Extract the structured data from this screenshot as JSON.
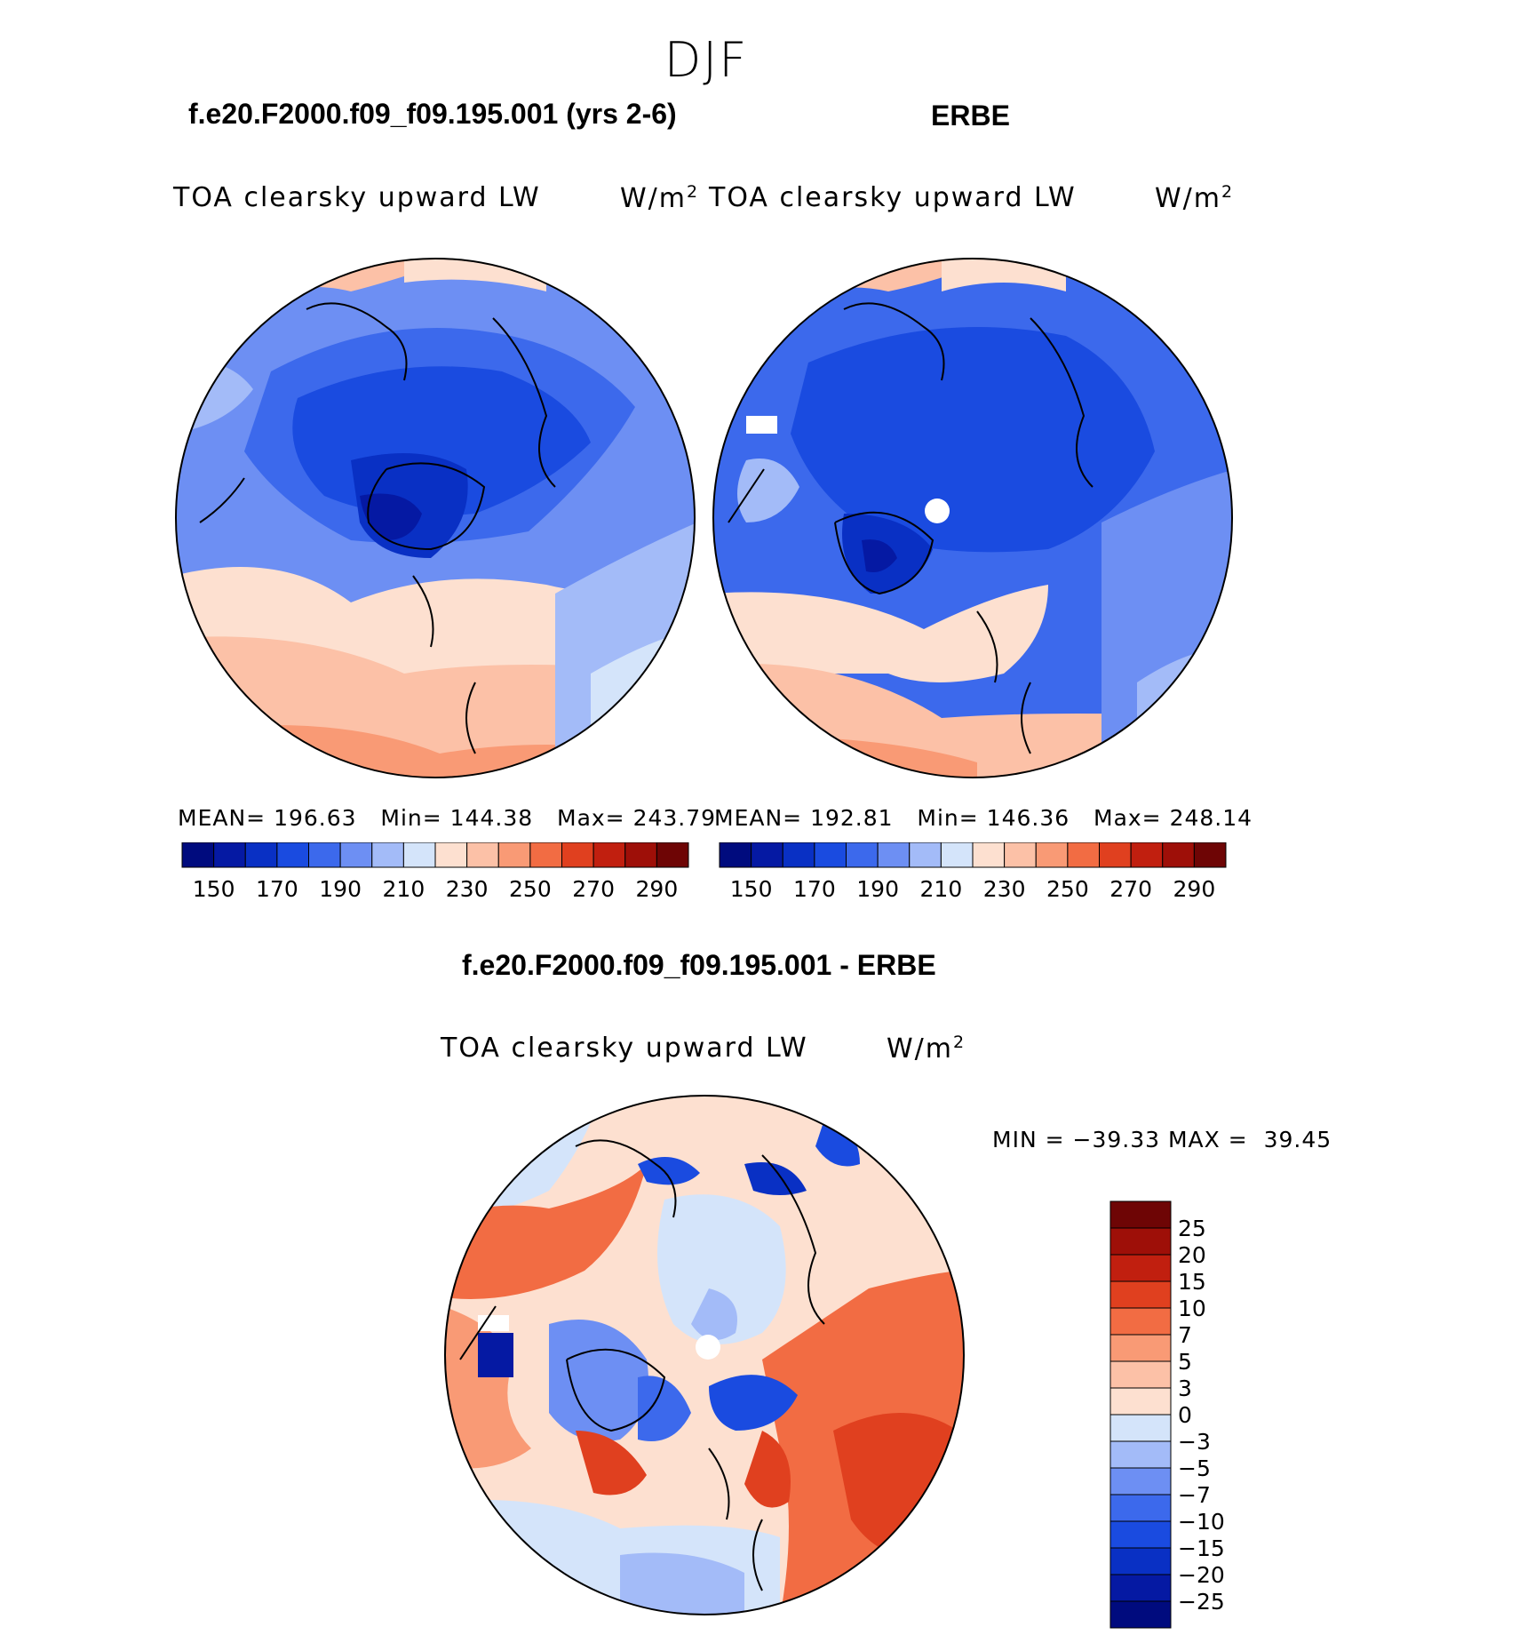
{
  "page": {
    "season": "DJF"
  },
  "panels": [
    {
      "title": "f.e20.F2000.f09_f09.195.001 (yrs 2-6)",
      "variable": "TOA clearsky upward LW",
      "units_base": "W/m",
      "units_exp": "2",
      "stats": {
        "mean_label": "MEAN=",
        "mean": "196.63",
        "min_label": "Min=",
        "min": "144.38",
        "max_label": "Max=",
        "max": "243.79"
      }
    },
    {
      "title": "ERBE",
      "variable": "TOA clearsky upward LW",
      "units_base": "W/m",
      "units_exp": "2",
      "stats": {
        "mean_label": "MEAN=",
        "mean": "192.81",
        "min_label": "Min=",
        "min": "146.36",
        "max_label": "Max=",
        "max": "248.14"
      }
    },
    {
      "title": "f.e20.F2000.f09_f09.195.001 - ERBE",
      "variable": "TOA clearsky upward LW",
      "units_base": "W/m",
      "units_exp": "2",
      "minmax": {
        "min_label": "MIN =",
        "min": "−39.33",
        "max_label": "MAX =",
        "max": "39.45"
      }
    }
  ],
  "chart_data": [
    {
      "type": "heatmap",
      "projection": "north polar stereographic",
      "title": "f.e20.F2000.f09_f09.195.001 (yrs 2-6)",
      "variable": "TOA clearsky upward LW",
      "units": "W/m2",
      "mean": 196.63,
      "min": 144.38,
      "max": 243.79,
      "colorbar": {
        "orientation": "horizontal",
        "levels": [
          150,
          160,
          170,
          180,
          190,
          200,
          210,
          220,
          230,
          240,
          250,
          260,
          270,
          280,
          290
        ],
        "tick_labels": [
          "150",
          "170",
          "190",
          "210",
          "230",
          "250",
          "270",
          "290"
        ],
        "colors": [
          "#000b7e",
          "#0519a3",
          "#0930c4",
          "#1a4be0",
          "#3c69ec",
          "#6d8ff3",
          "#a3bbf8",
          "#d4e4fa",
          "#fde0d0",
          "#fcc1a7",
          "#f99a75",
          "#f26c43",
          "#e0401f",
          "#c11f0f",
          "#9e0f08",
          "#6e0505"
        ]
      }
    },
    {
      "type": "heatmap",
      "projection": "north polar stereographic",
      "title": "ERBE",
      "variable": "TOA clearsky upward LW",
      "units": "W/m2",
      "mean": 192.81,
      "min": 146.36,
      "max": 248.14,
      "colorbar": {
        "orientation": "horizontal",
        "levels": [
          150,
          160,
          170,
          180,
          190,
          200,
          210,
          220,
          230,
          240,
          250,
          260,
          270,
          280,
          290
        ],
        "tick_labels": [
          "150",
          "170",
          "190",
          "210",
          "230",
          "250",
          "270",
          "290"
        ],
        "colors": [
          "#000b7e",
          "#0519a3",
          "#0930c4",
          "#1a4be0",
          "#3c69ec",
          "#6d8ff3",
          "#a3bbf8",
          "#d4e4fa",
          "#fde0d0",
          "#fcc1a7",
          "#f99a75",
          "#f26c43",
          "#e0401f",
          "#c11f0f",
          "#9e0f08",
          "#6e0505"
        ]
      }
    },
    {
      "type": "heatmap",
      "projection": "north polar stereographic",
      "title": "f.e20.F2000.f09_f09.195.001 - ERBE",
      "variable": "TOA clearsky upward LW",
      "units": "W/m2",
      "min": -39.33,
      "max": 39.45,
      "colorbar": {
        "orientation": "vertical",
        "levels": [
          -25,
          -20,
          -15,
          -10,
          -7,
          -5,
          -3,
          0,
          3,
          5,
          7,
          10,
          15,
          20,
          25
        ],
        "tick_labels": [
          "25",
          "20",
          "15",
          "10",
          "7",
          "5",
          "3",
          "0",
          "−3",
          "−5",
          "−7",
          "−10",
          "−15",
          "−20",
          "−25"
        ],
        "colors": [
          "#000b7e",
          "#0519a3",
          "#0930c4",
          "#1a4be0",
          "#3c69ec",
          "#6d8ff3",
          "#a3bbf8",
          "#d4e4fa",
          "#fde0d0",
          "#fcc1a7",
          "#f99a75",
          "#f26c43",
          "#e0401f",
          "#c11f0f",
          "#9e0f08",
          "#6e0505"
        ]
      }
    }
  ]
}
